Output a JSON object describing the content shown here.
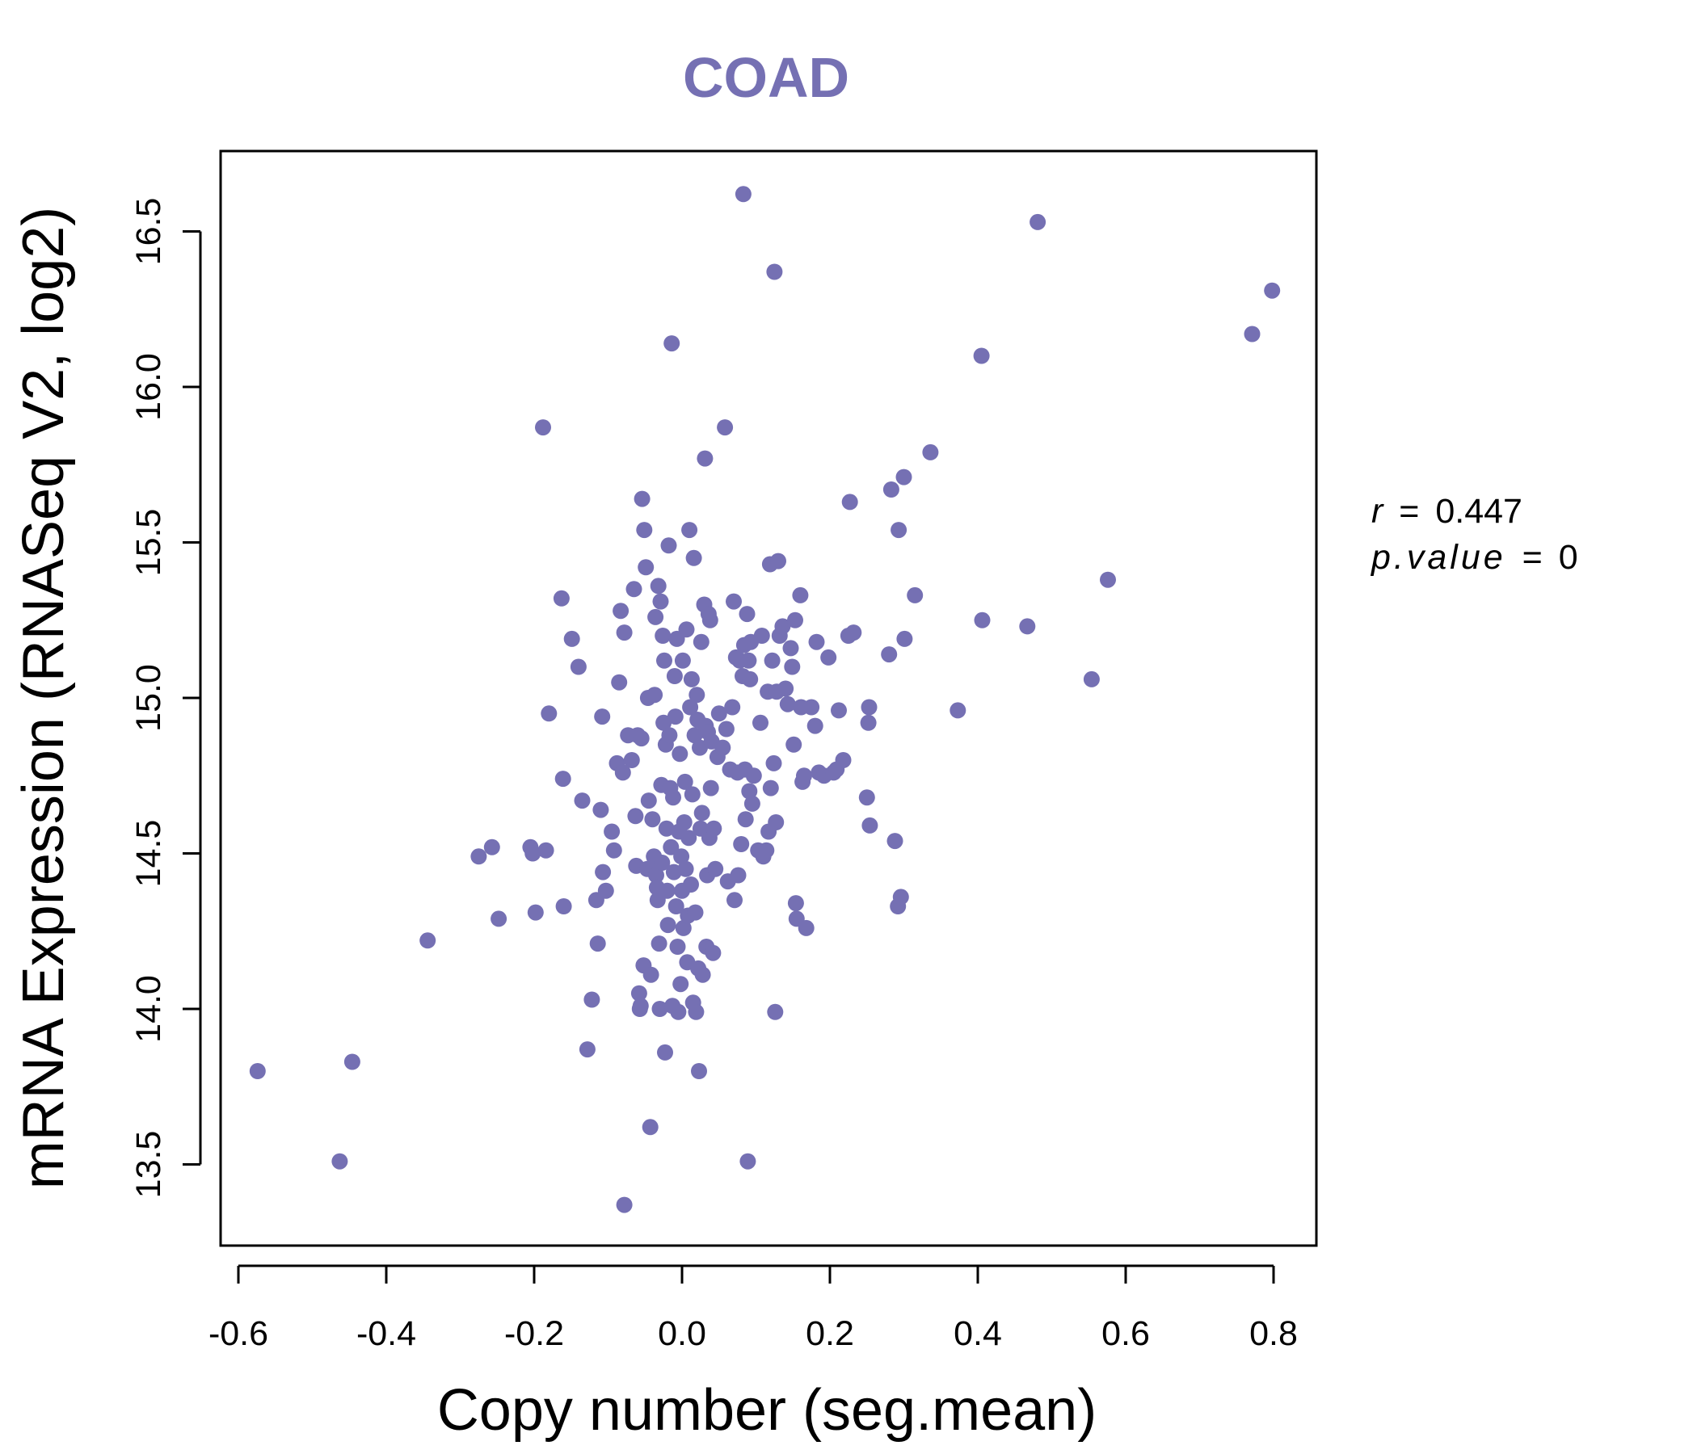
{
  "chart_data": {
    "type": "scatter",
    "title": "COAD",
    "xlabel": "Copy number (seg.mean)",
    "ylabel": "mRNA Expression (RNASeq V2, log2)",
    "xlim": [
      -0.63,
      0.85
    ],
    "ylim": [
      13.3,
      16.8
    ],
    "x_ticks": [
      -0.6,
      -0.4,
      -0.2,
      0.0,
      0.2,
      0.4,
      0.6,
      0.8
    ],
    "x_tick_labels": [
      "-0.6",
      "-0.4",
      "-0.2",
      "0.0",
      "0.2",
      "0.4",
      "0.6",
      "0.8"
    ],
    "y_ticks": [
      13.5,
      14.0,
      14.5,
      15.0,
      15.5,
      16.0,
      16.5
    ],
    "y_tick_labels": [
      "13.5",
      "14.0",
      "14.5",
      "15.0",
      "15.5",
      "16.0",
      "16.5"
    ],
    "grid": false,
    "colors": {
      "points": "#7570b3",
      "title": "#7570b3",
      "axes": "#000000"
    },
    "annotations": {
      "r_label": "r",
      "r_eq": "=",
      "r_value": "0.447",
      "p_label": "p.value",
      "p_eq": "=",
      "p_value": "0"
    },
    "points": [
      [
        -0.574,
        13.8
      ],
      [
        -0.463,
        13.51
      ],
      [
        -0.446,
        13.83
      ],
      [
        -0.344,
        14.22
      ],
      [
        -0.275,
        14.49
      ],
      [
        -0.257,
        14.52
      ],
      [
        -0.248,
        14.29
      ],
      [
        -0.205,
        14.52
      ],
      [
        -0.202,
        14.5
      ],
      [
        -0.198,
        14.31
      ],
      [
        -0.184,
        14.51
      ],
      [
        -0.18,
        14.95
      ],
      [
        -0.188,
        15.87
      ],
      [
        -0.163,
        15.32
      ],
      [
        -0.161,
        14.74
      ],
      [
        -0.16,
        14.33
      ],
      [
        -0.149,
        15.19
      ],
      [
        -0.14,
        15.1
      ],
      [
        -0.135,
        14.67
      ],
      [
        -0.128,
        13.87
      ],
      [
        -0.122,
        14.03
      ],
      [
        -0.116,
        14.35
      ],
      [
        -0.114,
        14.21
      ],
      [
        -0.11,
        14.64
      ],
      [
        -0.108,
        14.94
      ],
      [
        -0.107,
        14.44
      ],
      [
        -0.103,
        14.38
      ],
      [
        -0.095,
        14.57
      ],
      [
        -0.092,
        14.51
      ],
      [
        -0.088,
        14.79
      ],
      [
        -0.085,
        15.05
      ],
      [
        -0.083,
        15.28
      ],
      [
        -0.08,
        14.76
      ],
      [
        -0.078,
        13.37
      ],
      [
        -0.078,
        15.21
      ],
      [
        -0.073,
        14.88
      ],
      [
        -0.068,
        14.8
      ],
      [
        -0.065,
        15.35
      ],
      [
        -0.063,
        14.62
      ],
      [
        -0.062,
        14.46
      ],
      [
        -0.06,
        14.88
      ],
      [
        -0.058,
        14.05
      ],
      [
        -0.057,
        14.0
      ],
      [
        -0.056,
        14.01
      ],
      [
        -0.055,
        14.87
      ],
      [
        -0.054,
        15.64
      ],
      [
        -0.052,
        14.14
      ],
      [
        -0.051,
        15.54
      ],
      [
        -0.049,
        15.42
      ],
      [
        -0.047,
        14.45
      ],
      [
        -0.046,
        15.0
      ],
      [
        -0.045,
        14.67
      ],
      [
        -0.043,
        13.62
      ],
      [
        -0.042,
        14.11
      ],
      [
        -0.04,
        14.61
      ],
      [
        -0.039,
        14.46
      ],
      [
        -0.038,
        14.49
      ],
      [
        -0.037,
        15.01
      ],
      [
        -0.036,
        15.26
      ],
      [
        -0.035,
        14.43
      ],
      [
        -0.034,
        14.39
      ],
      [
        -0.033,
        14.35
      ],
      [
        -0.032,
        15.36
      ],
      [
        -0.031,
        14.21
      ],
      [
        -0.03,
        14.0
      ],
      [
        -0.029,
        15.31
      ],
      [
        -0.028,
        14.72
      ],
      [
        -0.027,
        14.47
      ],
      [
        -0.026,
        15.2
      ],
      [
        -0.025,
        14.92
      ],
      [
        -0.024,
        15.12
      ],
      [
        -0.023,
        13.86
      ],
      [
        -0.022,
        14.85
      ],
      [
        -0.021,
        14.58
      ],
      [
        -0.02,
        14.38
      ],
      [
        -0.019,
        14.27
      ],
      [
        -0.018,
        15.49
      ],
      [
        -0.017,
        14.88
      ],
      [
        -0.016,
        14.71
      ],
      [
        -0.015,
        14.52
      ],
      [
        -0.014,
        16.14
      ],
      [
        -0.013,
        14.01
      ],
      [
        -0.012,
        14.68
      ],
      [
        -0.011,
        14.44
      ],
      [
        -0.01,
        15.07
      ],
      [
        -0.009,
        14.94
      ],
      [
        -0.008,
        14.33
      ],
      [
        -0.007,
        15.19
      ],
      [
        -0.006,
        14.2
      ],
      [
        -0.005,
        13.99
      ],
      [
        -0.004,
        14.57
      ],
      [
        -0.003,
        14.82
      ],
      [
        -0.002,
        14.08
      ],
      [
        -0.001,
        14.49
      ],
      [
        0.0,
        14.38
      ],
      [
        0.001,
        15.12
      ],
      [
        0.002,
        14.26
      ],
      [
        0.003,
        14.6
      ],
      [
        0.004,
        14.73
      ],
      [
        0.005,
        14.45
      ],
      [
        0.006,
        15.22
      ],
      [
        0.007,
        14.15
      ],
      [
        0.008,
        14.3
      ],
      [
        0.009,
        14.55
      ],
      [
        0.01,
        15.54
      ],
      [
        0.011,
        14.97
      ],
      [
        0.012,
        14.4
      ],
      [
        0.013,
        15.06
      ],
      [
        0.014,
        14.69
      ],
      [
        0.015,
        14.02
      ],
      [
        0.016,
        15.45
      ],
      [
        0.017,
        14.88
      ],
      [
        0.018,
        14.31
      ],
      [
        0.019,
        13.99
      ],
      [
        0.02,
        15.01
      ],
      [
        0.021,
        14.93
      ],
      [
        0.022,
        14.13
      ],
      [
        0.023,
        13.8
      ],
      [
        0.024,
        14.84
      ],
      [
        0.025,
        14.58
      ],
      [
        0.026,
        15.18
      ],
      [
        0.027,
        14.63
      ],
      [
        0.028,
        14.11
      ],
      [
        0.03,
        15.3
      ],
      [
        0.031,
        15.77
      ],
      [
        0.032,
        14.91
      ],
      [
        0.033,
        14.2
      ],
      [
        0.034,
        14.43
      ],
      [
        0.035,
        14.89
      ],
      [
        0.036,
        15.27
      ],
      [
        0.037,
        14.55
      ],
      [
        0.038,
        15.25
      ],
      [
        0.039,
        14.71
      ],
      [
        0.04,
        14.86
      ],
      [
        0.042,
        14.18
      ],
      [
        0.043,
        14.58
      ],
      [
        0.045,
        14.45
      ],
      [
        0.048,
        14.81
      ],
      [
        0.05,
        14.95
      ],
      [
        0.055,
        14.84
      ],
      [
        0.058,
        15.87
      ],
      [
        0.06,
        14.9
      ],
      [
        0.062,
        14.41
      ],
      [
        0.065,
        14.77
      ],
      [
        0.068,
        14.97
      ],
      [
        0.07,
        15.31
      ],
      [
        0.071,
        14.35
      ],
      [
        0.073,
        15.13
      ],
      [
        0.075,
        14.76
      ],
      [
        0.076,
        14.43
      ],
      [
        0.078,
        15.12
      ],
      [
        0.08,
        14.53
      ],
      [
        0.082,
        15.07
      ],
      [
        0.083,
        16.62
      ],
      [
        0.084,
        15.17
      ],
      [
        0.085,
        14.77
      ],
      [
        0.086,
        14.61
      ],
      [
        0.088,
        15.27
      ],
      [
        0.089,
        13.51
      ],
      [
        0.09,
        15.12
      ],
      [
        0.091,
        14.7
      ],
      [
        0.092,
        15.06
      ],
      [
        0.093,
        15.18
      ],
      [
        0.095,
        14.66
      ],
      [
        0.097,
        14.75
      ],
      [
        0.103,
        14.51
      ],
      [
        0.106,
        14.92
      ],
      [
        0.108,
        15.2
      ],
      [
        0.11,
        14.49
      ],
      [
        0.114,
        14.51
      ],
      [
        0.116,
        15.02
      ],
      [
        0.117,
        14.57
      ],
      [
        0.119,
        15.43
      ],
      [
        0.12,
        14.71
      ],
      [
        0.122,
        15.12
      ],
      [
        0.124,
        14.79
      ],
      [
        0.125,
        16.37
      ],
      [
        0.126,
        13.99
      ],
      [
        0.127,
        14.6
      ],
      [
        0.128,
        15.02
      ],
      [
        0.13,
        15.44
      ],
      [
        0.132,
        15.2
      ],
      [
        0.136,
        15.23
      ],
      [
        0.14,
        15.03
      ],
      [
        0.143,
        14.98
      ],
      [
        0.147,
        15.16
      ],
      [
        0.149,
        15.1
      ],
      [
        0.151,
        14.85
      ],
      [
        0.153,
        15.25
      ],
      [
        0.154,
        14.34
      ],
      [
        0.155,
        14.29
      ],
      [
        0.16,
        15.33
      ],
      [
        0.161,
        14.97
      ],
      [
        0.163,
        14.73
      ],
      [
        0.165,
        14.75
      ],
      [
        0.168,
        14.26
      ],
      [
        0.175,
        14.97
      ],
      [
        0.18,
        14.91
      ],
      [
        0.182,
        15.18
      ],
      [
        0.185,
        14.76
      ],
      [
        0.192,
        14.75
      ],
      [
        0.198,
        15.13
      ],
      [
        0.205,
        14.76
      ],
      [
        0.209,
        14.77
      ],
      [
        0.212,
        14.96
      ],
      [
        0.218,
        14.8
      ],
      [
        0.225,
        15.2
      ],
      [
        0.227,
        15.63
      ],
      [
        0.232,
        15.21
      ],
      [
        0.25,
        14.68
      ],
      [
        0.252,
        14.92
      ],
      [
        0.253,
        14.97
      ],
      [
        0.254,
        14.59
      ],
      [
        0.28,
        15.14
      ],
      [
        0.283,
        15.67
      ],
      [
        0.288,
        14.54
      ],
      [
        0.292,
        14.33
      ],
      [
        0.293,
        15.54
      ],
      [
        0.296,
        14.36
      ],
      [
        0.3,
        15.71
      ],
      [
        0.301,
        15.19
      ],
      [
        0.315,
        15.33
      ],
      [
        0.336,
        15.79
      ],
      [
        0.373,
        14.96
      ],
      [
        0.405,
        16.1
      ],
      [
        0.406,
        15.25
      ],
      [
        0.467,
        15.23
      ],
      [
        0.481,
        16.53
      ],
      [
        0.554,
        15.06
      ],
      [
        0.576,
        15.38
      ],
      [
        0.771,
        16.17
      ],
      [
        0.798,
        16.31
      ]
    ]
  }
}
